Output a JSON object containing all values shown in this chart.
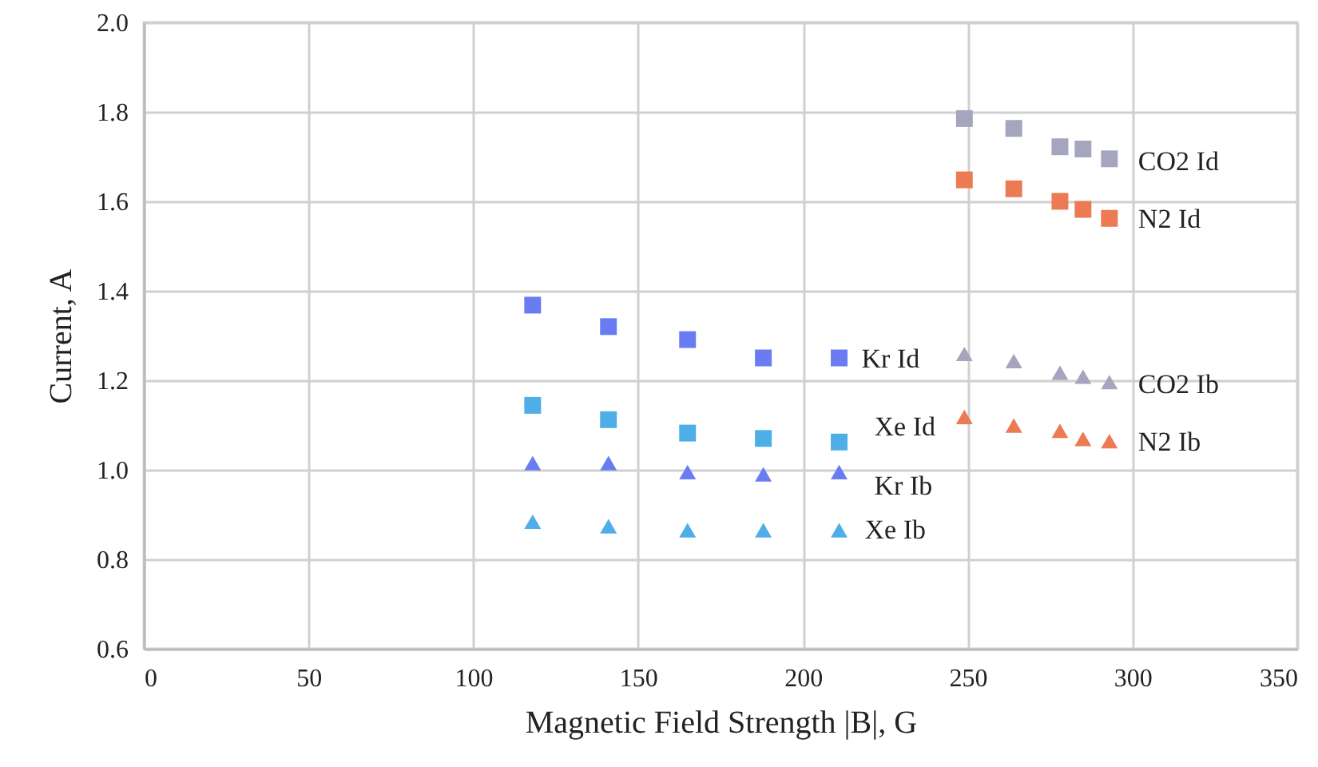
{
  "chart_data": {
    "type": "scatter",
    "xlabel": "Magnetic Field Strength |B|, G",
    "ylabel": "Current, A",
    "xlim": [
      0,
      350
    ],
    "xticks": [
      0,
      50,
      100,
      150,
      200,
      250,
      300,
      350
    ],
    "ylim": [
      0.6,
      2.0
    ],
    "yticks": [
      {
        "value": 0.6,
        "label": "0.6"
      },
      {
        "value": 0.8,
        "label": "0.8"
      },
      {
        "value": 1.0,
        "label": "1.0"
      },
      {
        "value": 1.2,
        "label": "1.2"
      },
      {
        "value": 1.4,
        "label": "1.4"
      },
      {
        "value": 1.6,
        "label": "1.6"
      },
      {
        "value": 1.8,
        "label": "1.8"
      },
      {
        "value": 2.0,
        "label": "2.0"
      }
    ],
    "grid": true,
    "series": [
      {
        "name": "CO2 Id",
        "color": "#a5a5bd",
        "marker": "square",
        "x": [
          249,
          264,
          278,
          285,
          293
        ],
        "values": [
          1.785,
          1.763,
          1.722,
          1.717,
          1.695
        ]
      },
      {
        "name": "N2 Id",
        "color": "#ec7b53",
        "marker": "square",
        "x": [
          249,
          264,
          278,
          285,
          293
        ],
        "values": [
          1.648,
          1.628,
          1.6,
          1.582,
          1.562
        ]
      },
      {
        "name": "Kr Id",
        "color": "#6a7cf2",
        "marker": "square",
        "x": [
          118,
          141,
          165,
          188,
          211
        ],
        "values": [
          1.368,
          1.32,
          1.291,
          1.25,
          1.25
        ]
      },
      {
        "name": "Xe Id",
        "color": "#4eaee8",
        "marker": "square",
        "x": [
          118,
          141,
          165,
          188,
          211
        ],
        "values": [
          1.144,
          1.112,
          1.082,
          1.07,
          1.062
        ]
      },
      {
        "name": "CO2 Ib",
        "color": "#a5a5bd",
        "marker": "triangle",
        "x": [
          249,
          264,
          278,
          285,
          293
        ],
        "values": [
          1.259,
          1.243,
          1.217,
          1.208,
          1.196
        ]
      },
      {
        "name": "N2 Ib",
        "color": "#ec7b53",
        "marker": "triangle",
        "x": [
          249,
          264,
          278,
          285,
          293
        ],
        "values": [
          1.118,
          1.099,
          1.087,
          1.069,
          1.064
        ]
      },
      {
        "name": "Kr Ib",
        "color": "#6a7cf2",
        "marker": "triangle",
        "x": [
          118,
          141,
          165,
          188,
          211
        ],
        "values": [
          1.015,
          1.015,
          0.995,
          0.99,
          0.995
        ]
      },
      {
        "name": "Xe Ib",
        "color": "#4eaee8",
        "marker": "triangle",
        "x": [
          118,
          141,
          165,
          188,
          211
        ],
        "values": [
          0.884,
          0.874,
          0.865,
          0.865,
          0.865
        ]
      }
    ]
  }
}
